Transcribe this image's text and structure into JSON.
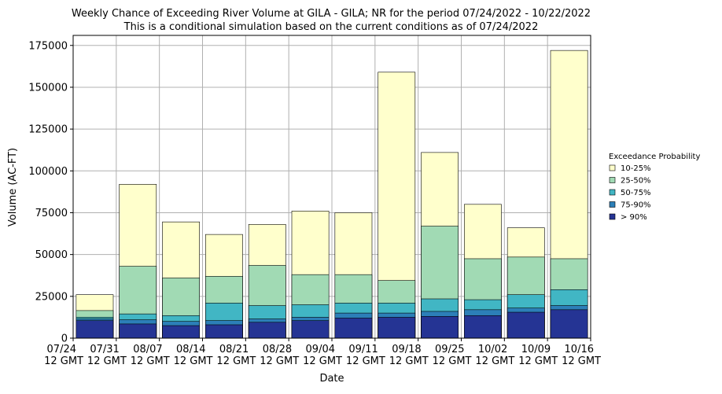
{
  "chart_data": {
    "type": "overlap_bar",
    "title": "Weekly Chance of Exceeding River Volume at GILA - GILA; NR for the period 07/24/2022 - 10/22/2022",
    "subtitle": "This is a conditional simulation based on the current conditions as of 07/24/2022",
    "x_label": "Date",
    "y_label": "Volume (AC-FT)",
    "legend_title": "Exceedance Probability",
    "categories": [
      null,
      null,
      null,
      null,
      null,
      null,
      null,
      null,
      null,
      null,
      null,
      null
    ],
    "xticks": [
      "07/24 12 GMT",
      "07/31 12 GMT",
      "08/07 12 GMT",
      "08/14 12 GMT",
      "08/21 12 GMT",
      "08/28 12 GMT",
      "09/04 12 GMT",
      "09/11 12 GMT",
      "09/18 12 GMT",
      "09/25 12 GMT",
      "10/02 12 GMT",
      "10/09 12 GMT",
      "10/16 12 GMT"
    ],
    "series": [
      {
        "name": "10-25%",
        "color": "#ffffcc",
        "values": [
          26000,
          92000,
          69500,
          62000,
          68000,
          76000,
          75000,
          159000,
          111000,
          80000,
          66000,
          172000
        ]
      },
      {
        "name": "25-50%",
        "color": "#a1dab4",
        "values": [
          16500,
          43000,
          36000,
          37000,
          43500,
          38000,
          38000,
          34500,
          67000,
          47500,
          48500,
          47500
        ]
      },
      {
        "name": "50-75%",
        "color": "#41b6c4",
        "values": [
          12500,
          14500,
          13500,
          21000,
          19500,
          20000,
          21000,
          21000,
          23500,
          23000,
          26000,
          29000
        ]
      },
      {
        "name": "75-90%",
        "color": "#2c7fb8",
        "values": [
          11500,
          11000,
          10000,
          10500,
          11500,
          12500,
          15000,
          15000,
          16000,
          17000,
          18000,
          19500
        ]
      },
      {
        "name": "> 90%",
        "color": "#253494",
        "values": [
          10500,
          8500,
          7500,
          8000,
          9500,
          10500,
          12000,
          12500,
          13000,
          13500,
          15500,
          17000
        ]
      }
    ],
    "ylim": [
      0,
      181000
    ],
    "yticks": [
      0,
      25000,
      50000,
      75000,
      100000,
      125000,
      150000,
      175000
    ],
    "grid": true
  }
}
